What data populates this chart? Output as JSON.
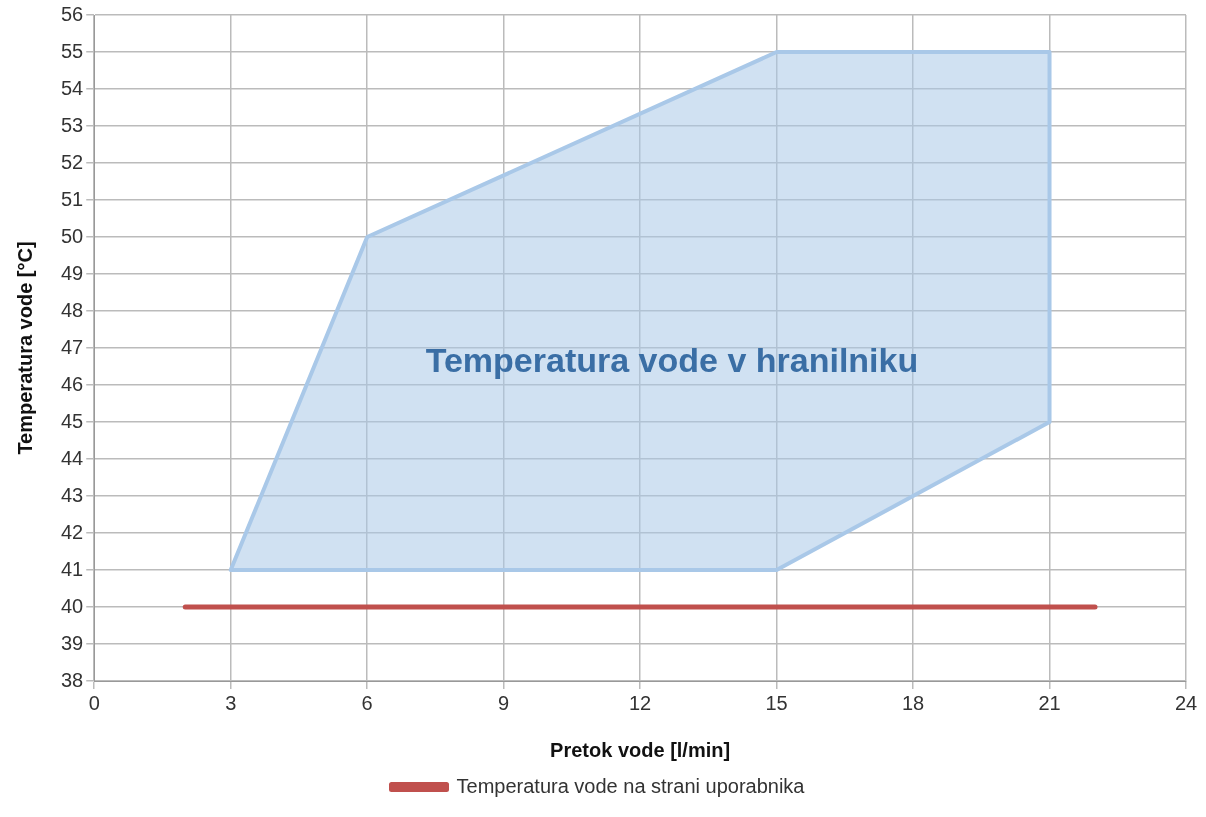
{
  "chart_data": {
    "type": "line",
    "xlabel": "Pretok vode [l/min]",
    "ylabel": "Temperatura vode [°C]",
    "xlim": [
      0,
      24
    ],
    "xticks": [
      0,
      3,
      6,
      9,
      12,
      15,
      18,
      21,
      24
    ],
    "ylim": [
      38,
      56
    ],
    "yticks": [
      38,
      39,
      40,
      41,
      42,
      43,
      44,
      45,
      46,
      47,
      48,
      49,
      50,
      51,
      52,
      53,
      54,
      55,
      56
    ],
    "grid": true,
    "legend": "bottom",
    "marker": "none",
    "series": [
      {
        "type": "area",
        "name": "Temperatura vode v hranilniku",
        "color": "#a9c8e8",
        "x": [
          3,
          6,
          15,
          21,
          21,
          15,
          3
        ],
        "values": [
          41,
          50,
          55,
          55,
          45,
          41,
          41
        ]
      },
      {
        "name": "Temperatura vode na strani uporabnika",
        "color": "#c0504d",
        "x": [
          2,
          22
        ],
        "values": [
          40,
          40
        ]
      }
    ]
  }
}
